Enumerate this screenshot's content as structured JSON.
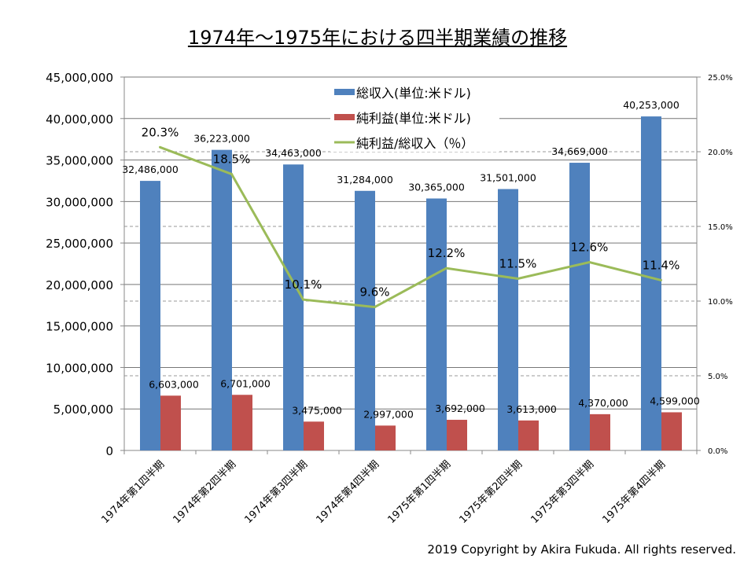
{
  "chart_data": {
    "type": "bar+line",
    "title": "1974年～1975年における四半期業績の推移",
    "categories": [
      "1974年第1四半期",
      "1974年第2四半期",
      "1974年第3四半期",
      "1974年第4四半期",
      "1975年第1四半期",
      "1975年第2四半期",
      "1975年第3四半期",
      "1975年第4四半期"
    ],
    "series": [
      {
        "name": "総収入(単位:米ドル)",
        "type": "bar",
        "axis": "left",
        "color": "#4f81bd",
        "values": [
          32486000,
          36223000,
          34463000,
          31284000,
          30365000,
          31501000,
          34669000,
          40253000
        ],
        "labels": [
          "32,486,000",
          "36,223,000",
          "34,463,000",
          "31,284,000",
          "30,365,000",
          "31,501,000",
          "34,669,000",
          "40,253,000"
        ]
      },
      {
        "name": "純利益(単位:米ドル)",
        "type": "bar",
        "axis": "left",
        "color": "#c0504d",
        "values": [
          6603000,
          6701000,
          3475000,
          2997000,
          3692000,
          3613000,
          4370000,
          4599000
        ],
        "labels": [
          "6,603,000",
          "6,701,000",
          "3,475,000",
          "2,997,000",
          "3,692,000",
          "3,613,000",
          "4,370,000",
          "4,599,000"
        ]
      },
      {
        "name": "純利益/総収入（％）",
        "type": "line",
        "axis": "right",
        "color": "#9bbb59",
        "values": [
          20.3,
          18.5,
          10.1,
          9.6,
          12.2,
          11.5,
          12.6,
          11.4
        ],
        "labels": [
          "20.3%",
          "18.5%",
          "10.1%",
          "9.6%",
          "12.2%",
          "11.5%",
          "12.6%",
          "11.4%"
        ]
      }
    ],
    "ylim": [
      0,
      45000000
    ],
    "y_ticks": [
      "0",
      "5,000,000",
      "10,000,000",
      "15,000,000",
      "20,000,000",
      "25,000,000",
      "30,000,000",
      "35,000,000",
      "40,000,000",
      "45,000,000"
    ],
    "y2lim": [
      0,
      25
    ],
    "y2_ticks": [
      "0.0%",
      "5.0%",
      "10.0%",
      "15.0%",
      "20.0%",
      "25.0%"
    ],
    "grid": true,
    "legend_placement": "top-center"
  },
  "copyright": "2019 Copyright by Akira Fukuda. All rights reserved."
}
